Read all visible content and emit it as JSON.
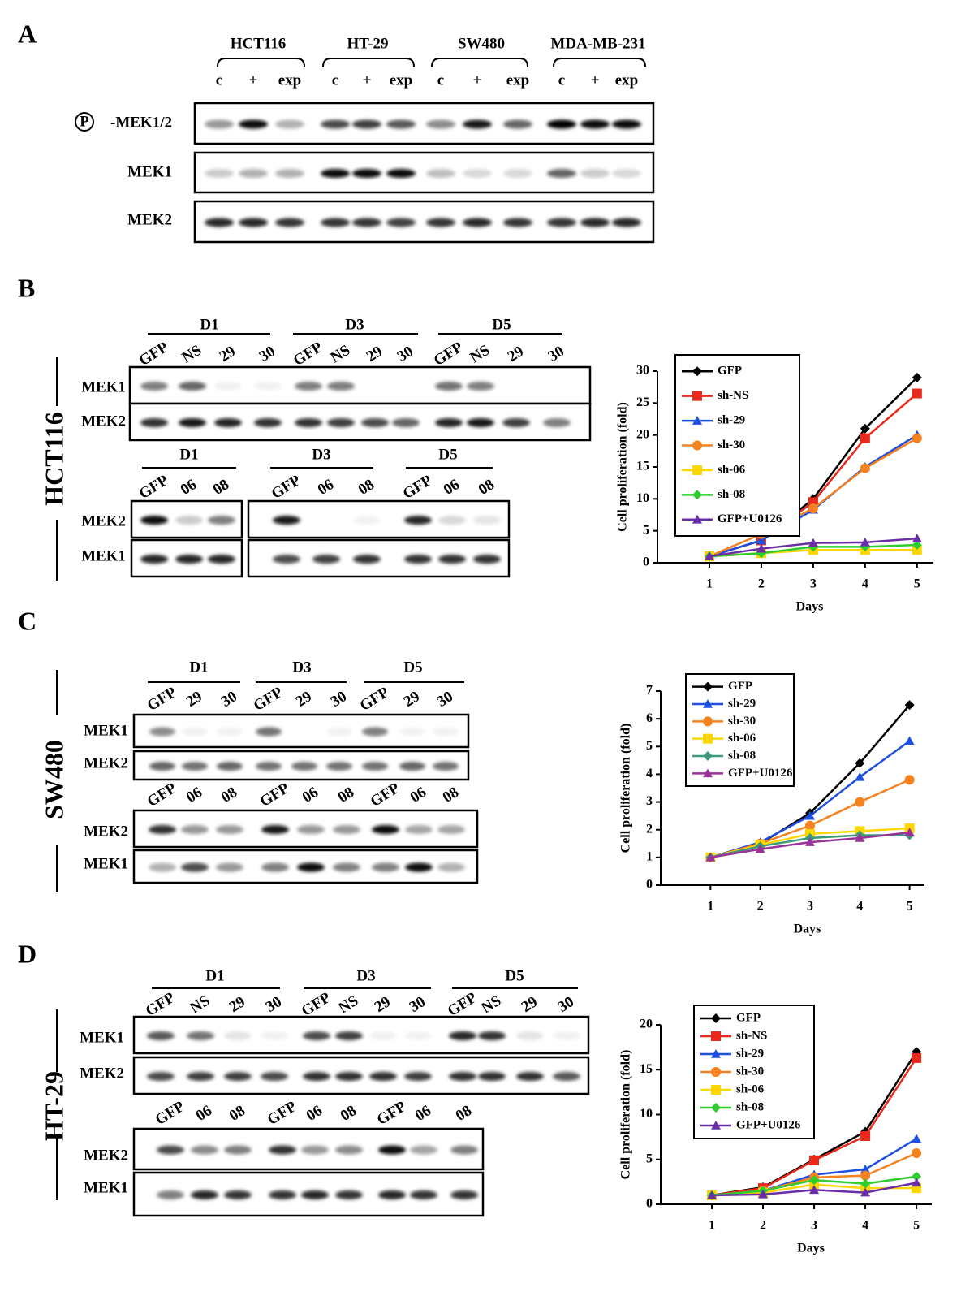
{
  "panels": [
    {
      "letter": "A",
      "cell_lines": [
        "HCT116",
        "HT-29",
        "SW480",
        "MDA-MB-231"
      ],
      "lanes": [
        "c",
        "+",
        "exp",
        "c",
        "+",
        "exp",
        "c",
        "+",
        "exp",
        "c",
        "+",
        "exp"
      ],
      "phospho": "P",
      "rows": [
        "-MEK1/2",
        "MEK1",
        "MEK2"
      ]
    },
    {
      "letter": "B",
      "side_label": "HCT116",
      "blots": [
        {
          "groups": [
            "D1",
            "D3",
            "D5"
          ],
          "lanes": [
            "GFP",
            "NS",
            "29",
            "30",
            "GFP",
            "NS",
            "29",
            "30",
            "GFP",
            "NS",
            "29",
            "30"
          ],
          "rows": [
            "MEK1",
            "MEK2"
          ]
        },
        {
          "groups": [
            "D1",
            "D3",
            "D5"
          ],
          "lanes": [
            "GFP",
            "06",
            "08",
            "GFP",
            "06",
            "08",
            "GFP",
            "06",
            "08"
          ],
          "rows": [
            "MEK2",
            "MEK1"
          ]
        }
      ]
    },
    {
      "letter": "C",
      "side_label": "SW480",
      "blots": [
        {
          "groups": [
            "D1",
            "D3",
            "D5"
          ],
          "lanes": [
            "GFP",
            "29",
            "30",
            "GFP",
            "29",
            "30",
            "GFP",
            "29",
            "30"
          ],
          "rows": [
            "MEK1",
            "MEK2"
          ]
        },
        {
          "lanes": [
            "GFP",
            "06",
            "08",
            "GFP",
            "06",
            "08",
            "GFP",
            "06",
            "08"
          ],
          "rows": [
            "MEK2",
            "MEK1"
          ]
        }
      ]
    },
    {
      "letter": "D",
      "side_label": "HT-29",
      "blots": [
        {
          "groups": [
            "D1",
            "D3",
            "D5"
          ],
          "lanes": [
            "GFP",
            "NS",
            "29",
            "30",
            "GFP",
            "NS",
            "29",
            "30",
            "GFP",
            "NS",
            "29",
            "30"
          ],
          "rows": [
            "MEK1",
            "MEK2"
          ]
        },
        {
          "lanes": [
            "GFP",
            "06",
            "08",
            "GFP",
            "06",
            "08",
            "GFP",
            "06",
            "08"
          ],
          "rows": [
            "MEK2",
            "MEK1"
          ]
        }
      ]
    }
  ],
  "chart_data": [
    {
      "type": "line",
      "ylabel": "Cell proliferation (fold)",
      "xlabel": "Days",
      "x": [
        1,
        2,
        3,
        4,
        5
      ],
      "xlim": [
        0,
        5.3
      ],
      "xticks": [
        1,
        2,
        3,
        4,
        5
      ],
      "ylim": [
        0,
        30
      ],
      "yticks": [
        0,
        5,
        10,
        15,
        20,
        25,
        30
      ],
      "series": [
        {
          "name": "GFP",
          "color": "#000000",
          "marker": "diamond",
          "values": [
            1,
            3.5,
            10,
            21,
            29
          ]
        },
        {
          "name": "sh-NS",
          "color": "#e8291c",
          "marker": "square",
          "values": [
            1,
            3.5,
            9.5,
            19.5,
            26.5
          ]
        },
        {
          "name": "sh-29",
          "color": "#1f4fe0",
          "marker": "triangle",
          "values": [
            1,
            3.5,
            8.3,
            15,
            20
          ]
        },
        {
          "name": "sh-30",
          "color": "#f58220",
          "marker": "circle",
          "values": [
            1,
            4.5,
            8.5,
            14.8,
            19.5
          ]
        },
        {
          "name": "sh-06",
          "color": "#ffd700",
          "marker": "square",
          "values": [
            1,
            1.5,
            2,
            2,
            2
          ]
        },
        {
          "name": "sh-08",
          "color": "#2ecc2e",
          "marker": "diamond",
          "values": [
            1,
            1.5,
            2.5,
            2.5,
            2.8
          ]
        },
        {
          "name": "GFP+U0126",
          "color": "#6a2fa8",
          "marker": "triangle",
          "values": [
            1,
            2.2,
            3.1,
            3.2,
            3.8
          ]
        }
      ]
    },
    {
      "type": "line",
      "ylabel": "Cell proliferation (fold)",
      "xlabel": "Days",
      "x": [
        1,
        2,
        3,
        4,
        5
      ],
      "xlim": [
        0,
        5.3
      ],
      "xticks": [
        1,
        2,
        3,
        4,
        5
      ],
      "ylim": [
        0,
        7
      ],
      "yticks": [
        0,
        1,
        2,
        3,
        4,
        5,
        6,
        7
      ],
      "series": [
        {
          "name": "GFP",
          "color": "#000000",
          "marker": "diamond",
          "values": [
            1,
            1.5,
            2.6,
            4.4,
            6.5
          ]
        },
        {
          "name": "sh-29",
          "color": "#1f4fe0",
          "marker": "triangle",
          "values": [
            1,
            1.55,
            2.5,
            3.9,
            5.2
          ]
        },
        {
          "name": "sh-30",
          "color": "#f58220",
          "marker": "circle",
          "values": [
            1,
            1.5,
            2.15,
            3.0,
            3.8
          ]
        },
        {
          "name": "sh-06",
          "color": "#ffd700",
          "marker": "square",
          "values": [
            1,
            1.45,
            1.85,
            1.95,
            2.05
          ]
        },
        {
          "name": "sh-08",
          "color": "#3a9a7a",
          "marker": "diamond",
          "values": [
            1,
            1.4,
            1.7,
            1.8,
            1.8
          ]
        },
        {
          "name": "GFP+U0126",
          "color": "#993399",
          "marker": "triangle",
          "values": [
            1,
            1.3,
            1.55,
            1.7,
            1.9
          ]
        }
      ]
    },
    {
      "type": "line",
      "ylabel": "Cell proliferation (fold)",
      "xlabel": "Days",
      "x": [
        1,
        2,
        3,
        4,
        5
      ],
      "xlim": [
        0,
        5.3
      ],
      "xticks": [
        1,
        2,
        3,
        4,
        5
      ],
      "ylim": [
        0,
        20
      ],
      "yticks": [
        0,
        5,
        10,
        15,
        20
      ],
      "series": [
        {
          "name": "GFP",
          "color": "#000000",
          "marker": "diamond",
          "values": [
            1,
            1.9,
            5,
            8.1,
            17
          ]
        },
        {
          "name": "sh-NS",
          "color": "#e8291c",
          "marker": "square",
          "values": [
            1,
            1.8,
            4.9,
            7.6,
            16.3
          ]
        },
        {
          "name": "sh-29",
          "color": "#1f4fe0",
          "marker": "triangle",
          "values": [
            1,
            1.5,
            3.3,
            3.9,
            7.3
          ]
        },
        {
          "name": "sh-30",
          "color": "#f58220",
          "marker": "circle",
          "values": [
            1,
            1.5,
            3,
            3.2,
            5.7
          ]
        },
        {
          "name": "sh-06",
          "color": "#ffd700",
          "marker": "square",
          "values": [
            1,
            1.3,
            2.2,
            1.8,
            1.8
          ]
        },
        {
          "name": "sh-08",
          "color": "#2ecc2e",
          "marker": "diamond",
          "values": [
            1,
            1.5,
            2.7,
            2.3,
            3.1
          ]
        },
        {
          "name": "GFP+U0126",
          "color": "#6a2fa8",
          "marker": "triangle",
          "values": [
            1,
            1.1,
            1.6,
            1.3,
            2.4
          ]
        }
      ]
    }
  ]
}
